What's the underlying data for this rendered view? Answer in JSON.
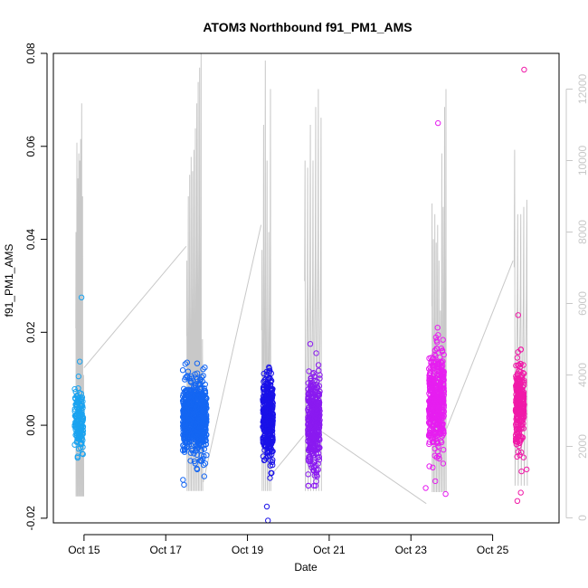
{
  "chart_data": {
    "type": "scatter",
    "title": "ATOM3 Northbound f91_PM1_AMS",
    "xlabel": "Date",
    "ylabel": "f91_PM1_AMS",
    "x_axis_type": "date",
    "xlim": [
      "2016-10-14T06:00",
      "2016-10-26T15:00"
    ],
    "ylim": [
      -0.021,
      0.08
    ],
    "y_ticks": [
      -0.02,
      0.0,
      0.02,
      0.04,
      0.06,
      0.08
    ],
    "y_tick_labels": [
      "-0.02",
      "0.00",
      "0.02",
      "0.04",
      "0.06",
      "0.08"
    ],
    "x_ticks": [
      "2016-10-15",
      "2016-10-17",
      "2016-10-19",
      "2016-10-21",
      "2016-10-23",
      "2016-10-25"
    ],
    "x_tick_labels": [
      "Oct 15",
      "Oct 17",
      "Oct 19",
      "Oct 21",
      "Oct 23",
      "Oct 25"
    ],
    "secondary_axis": {
      "side": "right",
      "color": "#c8c8c8",
      "ylim": [
        -140,
        13000
      ],
      "ticks": [
        0,
        2000,
        4000,
        6000,
        8000,
        10000,
        12000
      ],
      "tick_labels": [
        "0",
        "2000",
        "4000",
        "6000",
        "8000",
        "10000",
        "12000"
      ]
    },
    "grid": false,
    "marker": "open-circle",
    "series": [
      {
        "color": "#1aa3f0",
        "center": "2016-10-14T21:00",
        "width_h": 5,
        "y_mean": 0.001,
        "y_sd": 0.0032,
        "y_min": -0.007,
        "y_max": 0.0275,
        "n": 150,
        "outliers": [
          [
            0.3,
            0.0275
          ],
          [
            0.1,
            0.0137
          ],
          [
            -0.05,
            0.0105
          ],
          [
            -0.15,
            -0.007
          ]
        ]
      },
      {
        "color": "#1466f2",
        "center": "2016-10-17T17:00",
        "width_h": 14,
        "y_mean": 0.0015,
        "y_sd": 0.0038,
        "y_min": -0.0128,
        "y_max": 0.0135,
        "n": 700,
        "outliers": [
          [
            -0.45,
            -0.0128
          ],
          [
            0.1,
            0.0133
          ],
          [
            0.4,
            -0.011
          ]
        ]
      },
      {
        "color": "#1a12e8",
        "center": "2016-10-19T12:00",
        "width_h": 6,
        "y_mean": 0.0015,
        "y_sd": 0.0045,
        "y_min": -0.0205,
        "y_max": 0.0128,
        "n": 400,
        "outliers": [
          [
            0.0,
            -0.0205
          ],
          [
            -0.1,
            -0.0175
          ],
          [
            0.1,
            0.0125
          ]
        ]
      },
      {
        "color": "#8a1af0",
        "center": "2016-10-20T15:00",
        "width_h": 7,
        "y_mean": 0.0005,
        "y_sd": 0.0048,
        "y_min": -0.013,
        "y_max": 0.0175,
        "n": 400,
        "outliers": [
          [
            -0.3,
            0.0175
          ],
          [
            0.0,
            -0.013
          ],
          [
            0.2,
            0.0155
          ]
        ]
      },
      {
        "color": "#e61ef0",
        "center": "2016-10-23T15:00",
        "width_h": 9,
        "y_mean": 0.0045,
        "y_sd": 0.0055,
        "y_min": -0.0148,
        "y_max": 0.065,
        "n": 450,
        "outliers": [
          [
            0.1,
            0.065
          ],
          [
            -0.7,
            -0.0135
          ],
          [
            0.6,
            -0.0148
          ],
          [
            0.0,
            0.0165
          ]
        ]
      },
      {
        "color": "#f01aa8",
        "center": "2016-10-25T16:00",
        "width_h": 5,
        "y_mean": 0.005,
        "y_sd": 0.0045,
        "y_min": -0.0163,
        "y_max": 0.0765,
        "n": 280,
        "outliers": [
          [
            0.5,
            0.0765
          ],
          [
            -0.2,
            0.0237
          ],
          [
            -0.3,
            -0.0163
          ],
          [
            0.1,
            -0.0145
          ],
          [
            0.8,
            -0.0095
          ]
        ]
      }
    ],
    "secondary_series": {
      "name": "",
      "color": "#c8c8c8",
      "segments": [
        {
          "start": "2016-10-14T19:00",
          "end": "2016-10-15T00:00",
          "base": 2000,
          "peaks": [
            8000,
            10500,
            9500,
            10200,
            10000,
            10600,
            11600,
            9000,
            4000
          ]
        },
        {
          "start": "2016-10-17T12:00",
          "end": "2016-10-17T22:00",
          "base": 2500,
          "peaks": [
            7200,
            9000,
            9600,
            10100,
            9700,
            10300,
            10900,
            11600,
            12200,
            12600,
            13000,
            5000
          ]
        },
        {
          "start": "2016-10-19T08:00",
          "end": "2016-10-19T14:00",
          "base": 2500,
          "peaks": [
            7500,
            11000,
            12800,
            10000,
            8000,
            12000
          ]
        },
        {
          "start": "2016-10-20T09:00",
          "end": "2016-10-20T20:00",
          "base": 2500,
          "peaks": [
            10000,
            9800,
            11000,
            10000,
            11500,
            12000,
            11200
          ]
        },
        {
          "start": "2016-10-23T12:00",
          "end": "2016-10-23T21:00",
          "base": 2400,
          "peaks": [
            8800,
            7800,
            8500,
            7700,
            8200,
            7200,
            5800,
            10200,
            8700,
            11500,
            12000
          ]
        },
        {
          "start": "2016-10-25T12:00",
          "end": "2016-10-25T21:00",
          "base": 3000,
          "peaks": [
            10300,
            8500,
            8500,
            8700,
            8900
          ]
        }
      ],
      "connectors": [
        [
          [
            "2016-10-15T00:00",
            4200
          ],
          [
            "2016-10-17T12:00",
            7600
          ]
        ],
        [
          [
            "2016-10-17T22:00",
            1000
          ],
          [
            "2016-10-19T08:00",
            8200
          ]
        ],
        [
          [
            "2016-10-19T14:00",
            1200
          ],
          [
            "2016-10-20T09:00",
            2300
          ]
        ],
        [
          [
            "2016-10-20T20:00",
            2400
          ],
          [
            "2016-10-23T09:00",
            400
          ]
        ],
        [
          [
            "2016-10-23T21:00",
            2500
          ],
          [
            "2016-10-25T12:00",
            7200
          ]
        ]
      ]
    }
  }
}
